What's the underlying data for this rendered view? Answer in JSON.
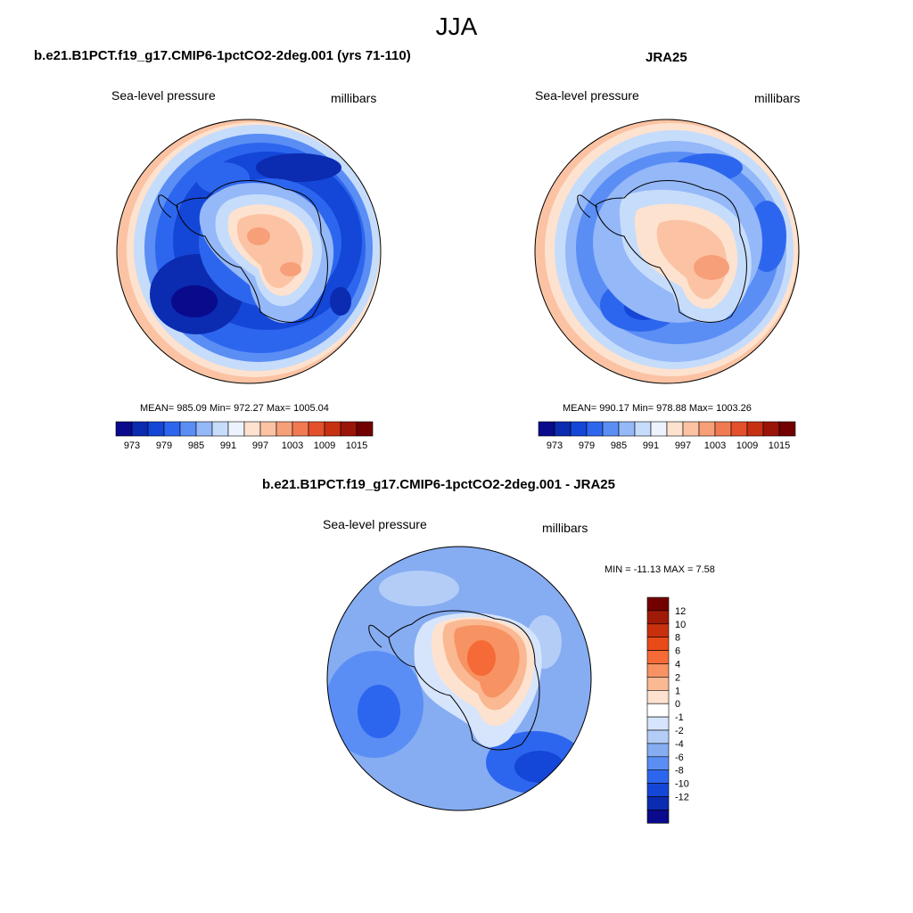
{
  "page_title": "JJA",
  "panels": [
    {
      "title": "b.e21.B1PCT.f19_g17.CMIP6-1pctCO2-2deg.001 (yrs 71-110)",
      "left_label": "Sea-level pressure",
      "right_label": "millibars",
      "stats": "MEAN= 985.09  Min= 972.27  Max= 1005.04",
      "colorbar_labels": [
        "973",
        "979",
        "985",
        "991",
        "997",
        "1003",
        "1009",
        "1015"
      ]
    },
    {
      "title": "JRA25",
      "left_label": "Sea-level pressure",
      "right_label": "millibars",
      "stats": "MEAN= 990.17  Min= 978.88  Max= 1003.26",
      "colorbar_labels": [
        "973",
        "979",
        "985",
        "991",
        "997",
        "1003",
        "1009",
        "1015"
      ]
    },
    {
      "title": "b.e21.B1PCT.f19_g17.CMIP6-1pctCO2-2deg.001 - JRA25",
      "left_label": "Sea-level pressure",
      "right_label": "millibars",
      "stats": "MIN = -11.13 MAX =   7.58",
      "colorbar_labels": [
        "12",
        "10",
        "8",
        "6",
        "4",
        "2",
        "1",
        "0",
        "-1",
        "-2",
        "-4",
        "-6",
        "-8",
        "-10",
        "-12"
      ]
    }
  ],
  "colors": {
    "abs_scale": [
      "#0a0a8c",
      "#0b2bb0",
      "#1446d8",
      "#2d66ee",
      "#5a8ef5",
      "#94b8f8",
      "#c6dcfb",
      "#ecf3fd",
      "#fde2cf",
      "#fbc3a3",
      "#f79f79",
      "#f27a52",
      "#e4502c",
      "#c83012",
      "#9a1408",
      "#730000"
    ],
    "diff_scale": [
      "#730000",
      "#a01a08",
      "#c8300e",
      "#e84a18",
      "#f56a36",
      "#f79263",
      "#fab893",
      "#fde2cf",
      "#ffffff",
      "#d6e5fb",
      "#b3cdf7",
      "#86acf2",
      "#5a8ef5",
      "#2d66ee",
      "#1446d8",
      "#0b2bb0",
      "#0a0a8c"
    ]
  }
}
